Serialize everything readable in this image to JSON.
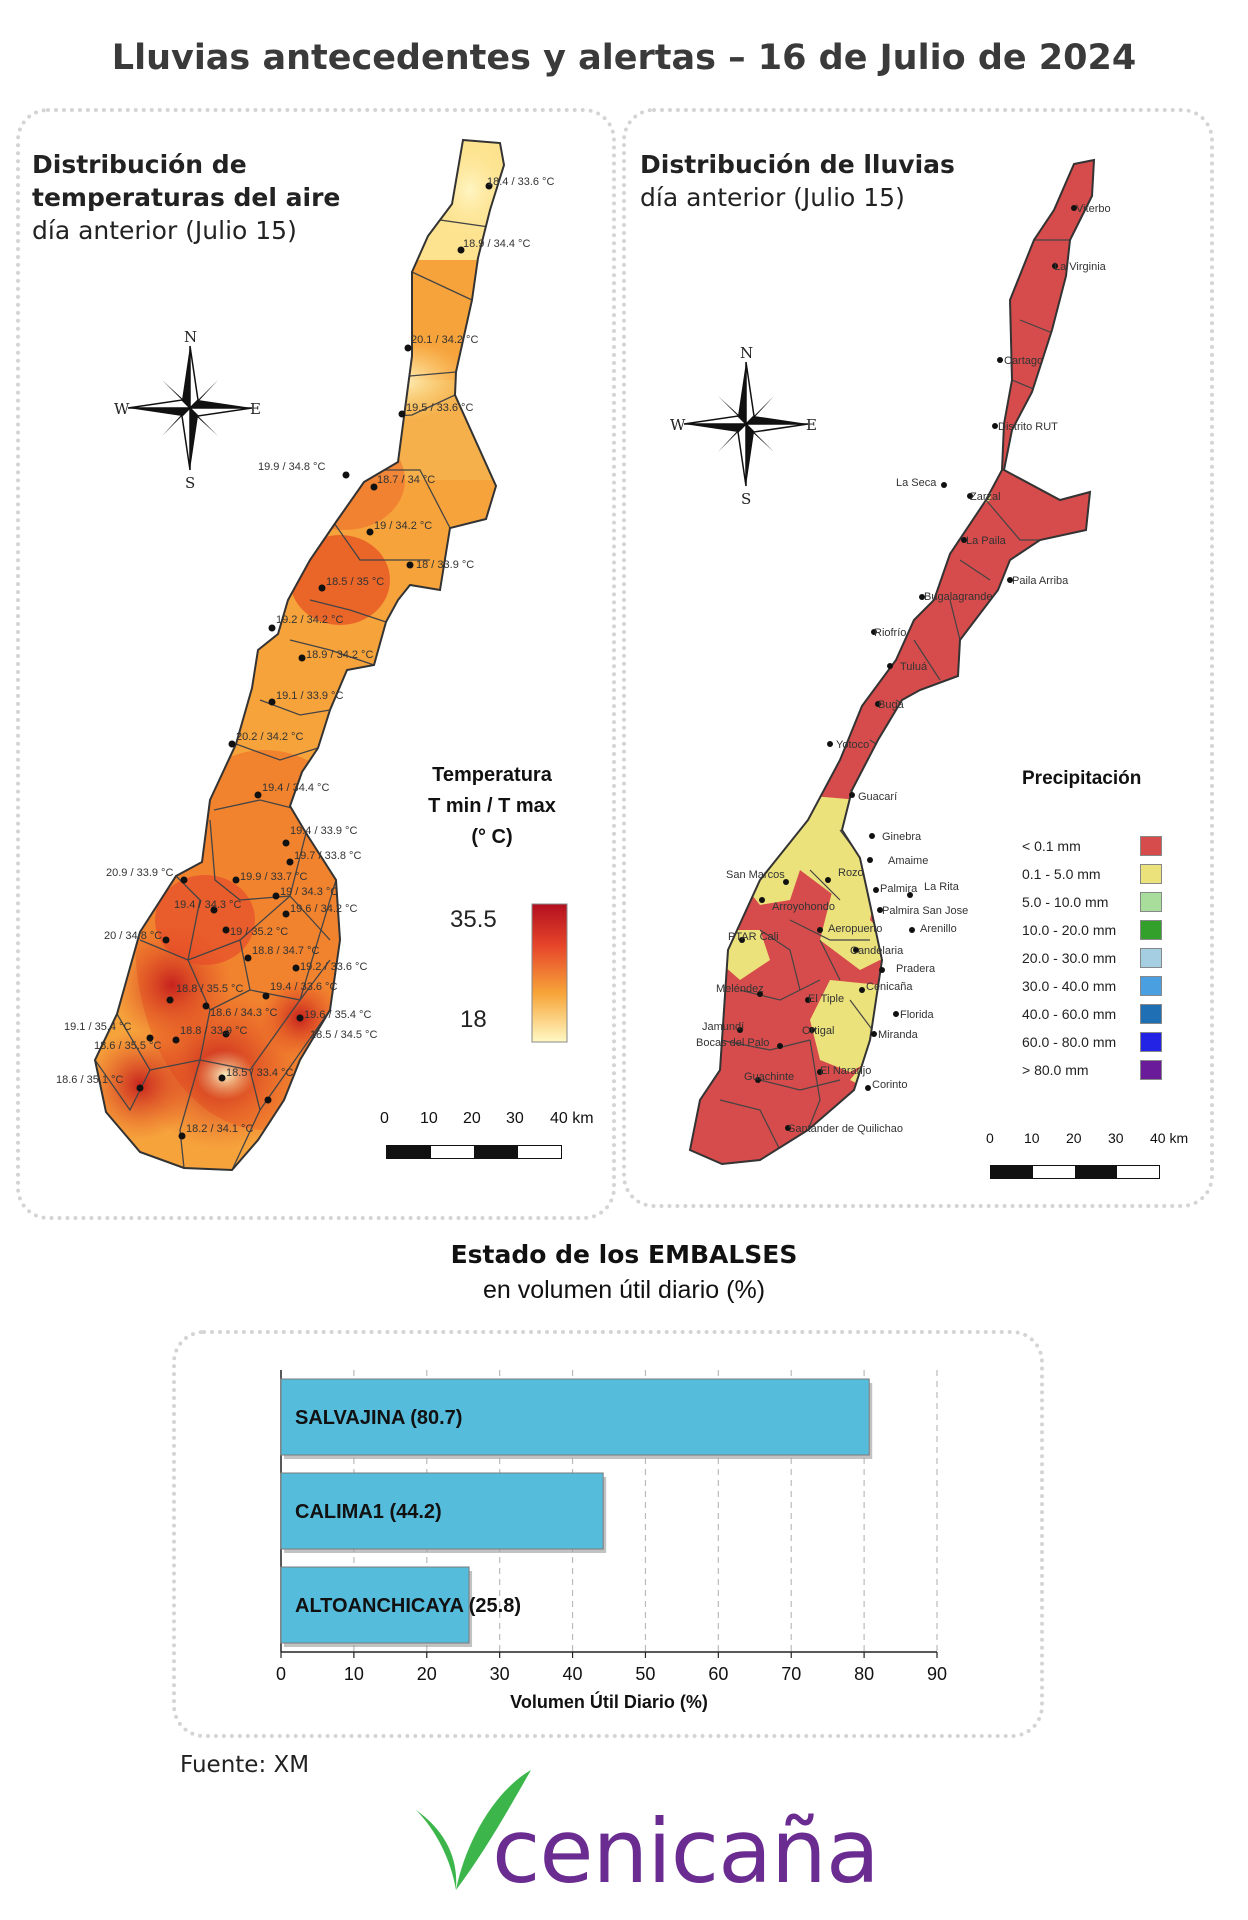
{
  "page": {
    "title": "Lluvias antecedentes y alertas – 16 de Julio de 2024",
    "source": "Fuente: XM",
    "logo_text": "cenicaña",
    "colors": {
      "logo_purple": "#6b2c91",
      "logo_green": "#3cb54a",
      "bar": "#55bcdc",
      "rain_red": "#d64b4b"
    }
  },
  "temp_map": {
    "title_bold_1": "Distribución de",
    "title_bold_2": "temperaturas del aire",
    "subtitle": "día anterior (Julio 15)",
    "compass": {
      "n": "N",
      "s": "S",
      "e": "E",
      "w": "W"
    },
    "legend": {
      "line1": "Temperatura",
      "line2": "T min / T max",
      "line3": "(° C)",
      "max": "35.5",
      "min": "18"
    },
    "scale": {
      "ticks": [
        "0",
        "10",
        "20",
        "30",
        "40 km"
      ]
    },
    "stations": [
      "18.4 / 33.6 °C",
      "18.9 / 34.4 °C",
      "20.1 / 34.2 °C",
      "19.5 / 33.6 °C",
      "19.9 / 34.8 °C",
      "18.7 / 34 °C",
      "19 / 34.2 °C",
      "18 / 33.9 °C",
      "18.5 / 35 °C",
      "19.2 / 34.2 °C",
      "18.9 / 34.2 °C",
      "19.1 / 33.9 °C",
      "20.2 / 34.2 °C",
      "19.4 / 34.4 °C",
      "19.4 / 33.9 °C",
      "19.7 / 33.8 °C",
      "20.9 / 33.9 °C",
      "19.9 / 33.7 °C",
      "19 / 34.3 °C",
      "19.4 / 34.3 °C",
      "19.6 / 34.2 °C",
      "20 / 34.8 °C",
      "19 / 35.2 °C",
      "18.8 / 34.7 °C",
      "19.2 / 33.6 °C",
      "18.8 / 35.5 °C",
      "19.4 / 33.6 °C",
      "18.6 / 34.3 °C",
      "19.6 / 35.4 °C",
      "19.1 / 35.4 °C",
      "18.8 / 33.9 °C",
      "18.5 / 34.5 °C",
      "18.6 / 35.5 °C",
      "18.6 / 35.1 °C",
      "18.5 / 33.4 °C",
      "18.2 / 34.1 °C"
    ]
  },
  "rain_map": {
    "title_bold": "Distribución de lluvias",
    "subtitle": "día anterior (Julio 15)",
    "compass": {
      "n": "N",
      "s": "S",
      "e": "E",
      "w": "W"
    },
    "legend_title": "Precipitación",
    "legend": [
      {
        "label": "< 0.1 mm",
        "color": "#d64b4b"
      },
      {
        "label": "0.1 - 5.0 mm",
        "color": "#ece27c"
      },
      {
        "label": "5.0 - 10.0 mm",
        "color": "#a9dd9b"
      },
      {
        "label": "10.0 - 20.0 mm",
        "color": "#33a02c"
      },
      {
        "label": "20.0 - 30.0 mm",
        "color": "#a6cee3"
      },
      {
        "label": "30.0 - 40.0 mm",
        "color": "#4a9fe0"
      },
      {
        "label": "40.0 - 60.0 mm",
        "color": "#1f6fb4"
      },
      {
        "label": "60.0 - 80.0 mm",
        "color": "#2323e6"
      },
      {
        "label": "> 80.0 mm",
        "color": "#6a1b9a"
      }
    ],
    "scale": {
      "ticks": [
        "0",
        "10",
        "20",
        "30",
        "40 km"
      ]
    },
    "stations": [
      "Viterbo",
      "La Virginia",
      "Cartago",
      "Distrito RUT",
      "La Seca",
      "Zarzal",
      "La Paila",
      "Paila Arriba",
      "Bugalagrande",
      "Riofrío",
      "Tuluá",
      "Buga",
      "Yotoco",
      "Guacarí",
      "Ginebra",
      "Amaime",
      "San Marcos",
      "Rozo",
      "Palmira",
      "La Rita",
      "Arroyohondo",
      "Palmira San Jose",
      "Aeropuerto",
      "Arenillo",
      "PTAR Cali",
      "Candelaria",
      "Pradera",
      "Meléndez",
      "Cenicaña",
      "El Tiple",
      "Florida",
      "Jamundí",
      "Bocas del Palo",
      "Ortigal",
      "Miranda",
      "Guachinte",
      "El Naranjo",
      "Corinto",
      "Santander de Quilichao"
    ]
  },
  "reservoirs": {
    "title_bold": "Estado de los EMBALSES",
    "subtitle": "en volumen útil diario (%)"
  },
  "chart_data": {
    "type": "bar",
    "orientation": "horizontal",
    "categories": [
      "SALVAJINA (80.7)",
      "CALIMA1 (44.2)",
      "ALTOANCHICAYA (25.8)"
    ],
    "values": [
      80.7,
      44.2,
      25.8
    ],
    "xlabel": "Volumen Útil Diario (%)",
    "ylabel": "",
    "xlim": [
      0,
      90
    ],
    "xticks": [
      "0",
      "10",
      "20",
      "30",
      "40",
      "50",
      "60",
      "70",
      "80",
      "90"
    ],
    "grid": "vertical dashed",
    "bar_color": "#55bcdc"
  }
}
